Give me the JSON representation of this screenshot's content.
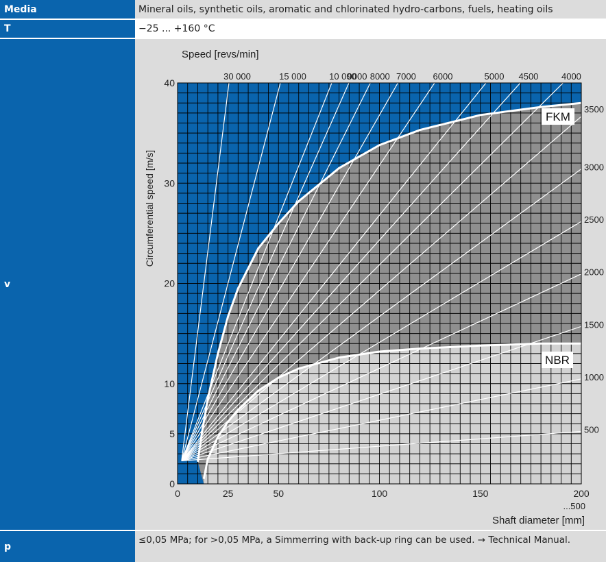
{
  "rows": {
    "media": {
      "label": "Media",
      "value": "Mineral oils, synthetic oils, aromatic and chlorinated hydro-carbons, fuels, heating oils"
    },
    "temp": {
      "label": "T",
      "value": "−25 ... +160 °C"
    },
    "speed": {
      "label": "v"
    },
    "pressure": {
      "label": "p",
      "value": "≤0,05 MPa; for >0,05 MPa, a Simmerring with back-up ring can be used. → Technical Manual."
    }
  },
  "colors": {
    "label_bg": "#0a64ad",
    "chart_blue": "#0a64ad",
    "fkm_zone": "#8f8f8f",
    "nbr_zone": "#d2d2d2",
    "row_bg": "#dcdcdc"
  },
  "chart_data": {
    "type": "line",
    "title": "Speed [revs/min]",
    "xlabel": "Shaft diameter [mm]",
    "ylabel": "Circumferential speed [m/s]",
    "xlim": [
      0,
      200
    ],
    "ylim": [
      0,
      40
    ],
    "x_tick_labels": [
      "0",
      "25",
      "50",
      "100",
      "150",
      "200"
    ],
    "x_tick_values": [
      0,
      25,
      50,
      100,
      150,
      200
    ],
    "x_extra_label": "...500",
    "y_tick_labels": [
      "0",
      "5",
      "10",
      "20",
      "30",
      "40"
    ],
    "y_tick_values": [
      0,
      5,
      10,
      20,
      30,
      40
    ],
    "grid": true,
    "speed_lines_top": [
      "30 000",
      "15 000",
      "10 000",
      "9000",
      "8000",
      "7000",
      "6000",
      "5000",
      "4500",
      "4000"
    ],
    "speed_lines_top_rpm": [
      30000,
      15000,
      10000,
      9000,
      8000,
      7000,
      6000,
      5000,
      4500,
      4000
    ],
    "speed_lines_right": [
      "3500",
      "3000",
      "2500",
      "2000",
      "1500",
      "1000",
      "500"
    ],
    "speed_lines_right_rpm": [
      3500,
      3000,
      2500,
      2000,
      1500,
      1000,
      500
    ],
    "series": [
      {
        "name": "FKM",
        "x": [
          10,
          12,
          15,
          20,
          25,
          30,
          40,
          50,
          60,
          80,
          100,
          120,
          150,
          180,
          200
        ],
        "y": [
          2.2,
          5,
          8.5,
          13,
          16.7,
          19.5,
          23.5,
          26,
          28.2,
          31.5,
          33.8,
          35.3,
          36.8,
          37.6,
          38
        ]
      },
      {
        "name": "NBR",
        "x": [
          13,
          15,
          20,
          25,
          30,
          40,
          50,
          60,
          80,
          100,
          120,
          150,
          180,
          200
        ],
        "y": [
          0.5,
          2.5,
          4.7,
          6.2,
          7.4,
          9.3,
          10.6,
          11.5,
          12.6,
          13.2,
          13.5,
          13.8,
          14,
          14
        ]
      }
    ]
  }
}
